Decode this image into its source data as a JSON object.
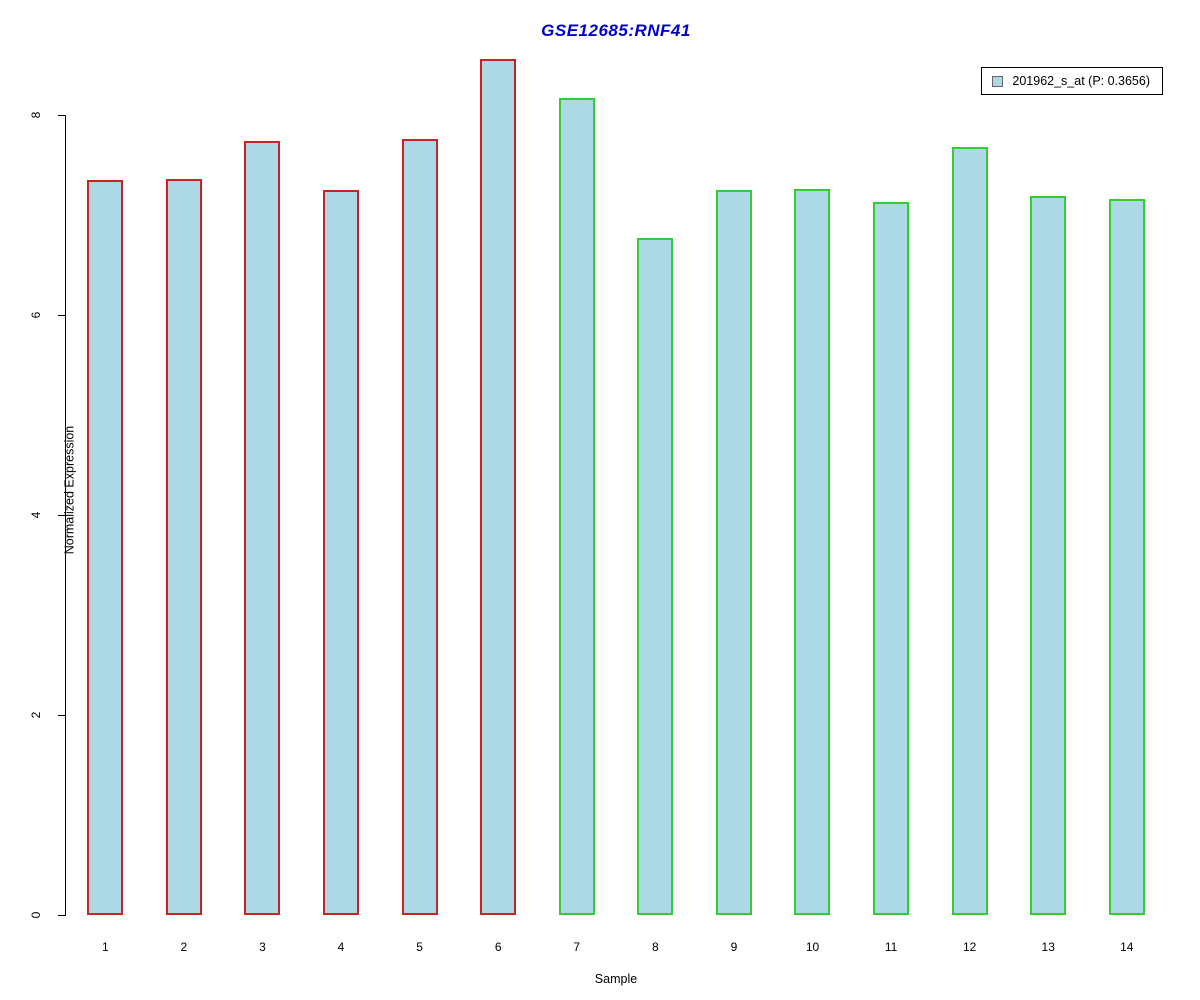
{
  "chart_data": {
    "type": "bar",
    "title": "GSE12685:RNF41",
    "title_color": "#0000CC",
    "xlabel": "Sample",
    "ylabel": "Normalized Expression",
    "categories": [
      "1",
      "2",
      "3",
      "4",
      "5",
      "6",
      "7",
      "8",
      "9",
      "10",
      "11",
      "12",
      "13",
      "14"
    ],
    "values": [
      7.35,
      7.36,
      7.74,
      7.25,
      7.76,
      8.56,
      8.17,
      6.77,
      7.25,
      7.26,
      7.13,
      7.68,
      7.19,
      7.16
    ],
    "bar_groups": [
      "red",
      "red",
      "red",
      "red",
      "red",
      "red",
      "green",
      "green",
      "green",
      "green",
      "green",
      "green",
      "green",
      "green"
    ],
    "group_colors": {
      "red": "#CC2222",
      "green": "#33CC33"
    },
    "bar_fill": "#ADD8E6",
    "ylim": [
      0,
      8.6
    ],
    "yticks": [
      0,
      2,
      4,
      6,
      8
    ],
    "grid": false,
    "legend_position": "top-right",
    "legend_entries": [
      "201962_s_at (P: 0.3656)"
    ],
    "legend_swatch_fill": "#ADD8E6",
    "legend_swatch_border": "#666666"
  }
}
